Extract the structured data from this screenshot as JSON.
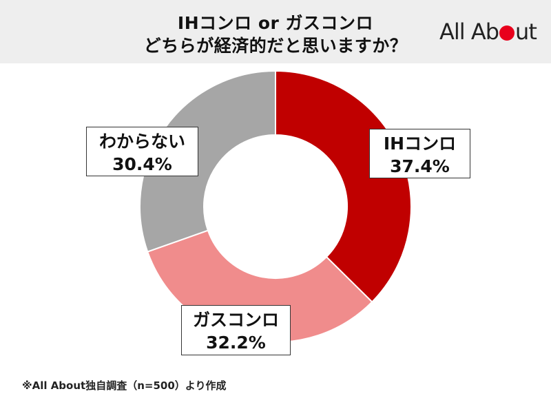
{
  "header": {
    "title_line1": "IHコンロ or ガスコンロ",
    "title_line2": "どちらが経済的だと思いますか？",
    "logo_part1": "All Ab",
    "logo_part2": "ut",
    "logo_dot_color": "#e8001c"
  },
  "chart_data": {
    "type": "pie",
    "donut": true,
    "categories": [
      "IHコンロ",
      "ガスコンロ",
      "わからない"
    ],
    "values": [
      37.4,
      32.2,
      30.4
    ],
    "value_labels": [
      "37.4%",
      "32.2%",
      "30.4%"
    ],
    "colors": [
      "#c00000",
      "#f08c8c",
      "#a6a6a6"
    ],
    "start_angle_deg": 0,
    "direction": "clockwise",
    "unit": "%"
  },
  "footnote": "※All About独自調査（n=500）より作成"
}
